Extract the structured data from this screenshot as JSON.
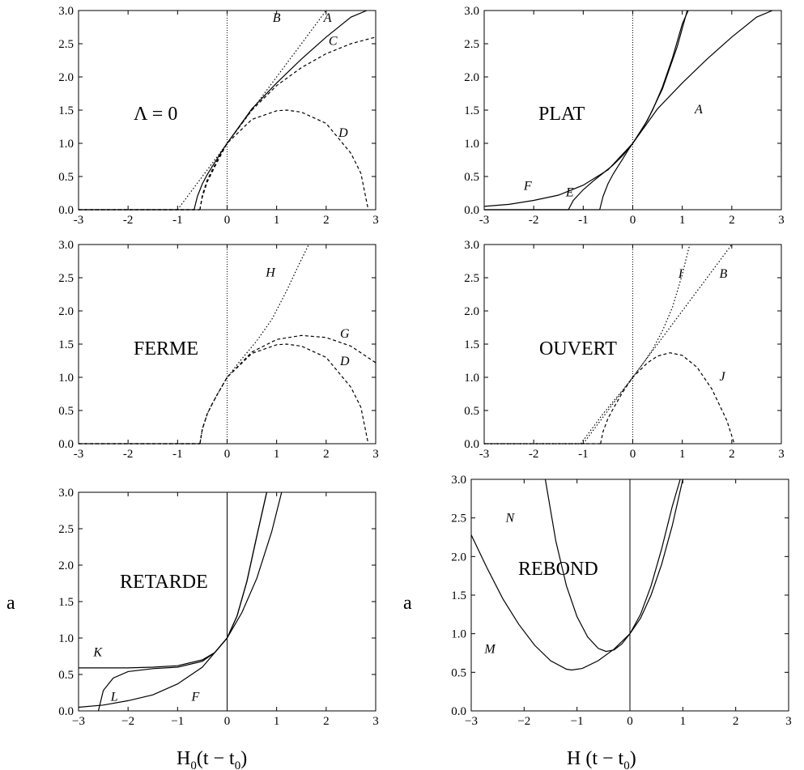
{
  "chart_data": [
    {
      "type": "line",
      "title": "Λ = 0",
      "xlim": [
        -3,
        3
      ],
      "ylim": [
        0,
        3
      ],
      "xticks": [
        "-3",
        "-2",
        "-1",
        "0",
        "1",
        "2",
        "3"
      ],
      "yticks": [
        "0.0",
        "0.5",
        "1.0",
        "1.5",
        "2.0",
        "2.5",
        "3.0"
      ],
      "zero_line_style": "dotted",
      "series": [
        {
          "name": "A",
          "style": "solid",
          "x": [
            -0.667,
            -0.6,
            -0.5,
            -0.4,
            -0.3,
            -0.2,
            -0.1,
            0,
            0.5,
            1,
            1.5,
            2,
            2.5,
            2.82
          ],
          "y": [
            0,
            0.2,
            0.39,
            0.53,
            0.65,
            0.77,
            0.89,
            1,
            1.52,
            1.91,
            2.27,
            2.6,
            2.9,
            3.0
          ]
        },
        {
          "name": "B",
          "style": "dotted",
          "x": [
            -1,
            -0.5,
            0,
            0.5,
            1,
            1.5,
            2
          ],
          "y": [
            0,
            0.5,
            1,
            1.5,
            2,
            2.5,
            3
          ]
        },
        {
          "name": "C",
          "style": "dashed",
          "x": [
            -0.55,
            -0.5,
            -0.4,
            -0.3,
            -0.2,
            -0.1,
            0,
            0.5,
            1,
            1.5,
            2,
            2.5,
            3
          ],
          "y": [
            0,
            0.19,
            0.42,
            0.57,
            0.72,
            0.86,
            1,
            1.5,
            1.87,
            2.14,
            2.35,
            2.5,
            2.6
          ]
        },
        {
          "name": "D",
          "style": "dashed",
          "x": [
            -0.55,
            -0.5,
            -0.4,
            -0.3,
            -0.2,
            -0.1,
            0,
            0.5,
            1,
            1.2,
            1.5,
            2,
            2.5,
            2.7,
            2.85
          ],
          "y": [
            0,
            0.22,
            0.45,
            0.6,
            0.74,
            0.87,
            1,
            1.36,
            1.49,
            1.5,
            1.47,
            1.3,
            0.85,
            0.55,
            0
          ]
        }
      ],
      "labels": [
        {
          "text": "B",
          "x": 0.92,
          "y": 2.83
        },
        {
          "text": "A",
          "x": 1.95,
          "y": 2.83
        },
        {
          "text": "C",
          "x": 2.05,
          "y": 2.48
        },
        {
          "text": "D",
          "x": 2.25,
          "y": 1.1
        }
      ]
    },
    {
      "type": "line",
      "title": "PLAT",
      "xlim": [
        -3,
        3
      ],
      "ylim": [
        0,
        3
      ],
      "xticks": [
        "-3",
        "-2",
        "-1",
        "0",
        "1",
        "2",
        "3"
      ],
      "yticks": [
        "0.0",
        "0.5",
        "1.0",
        "1.5",
        "2.0",
        "2.5",
        "3.0"
      ],
      "zero_line_style": "dotted",
      "series": [
        {
          "name": "A",
          "style": "solid",
          "x": [
            -0.667,
            -0.6,
            -0.5,
            -0.4,
            -0.3,
            -0.2,
            -0.1,
            0,
            0.5,
            1,
            1.5,
            2,
            2.5,
            2.82
          ],
          "y": [
            0,
            0.2,
            0.39,
            0.53,
            0.65,
            0.77,
            0.89,
            1,
            1.52,
            1.91,
            2.27,
            2.6,
            2.9,
            3.0
          ]
        },
        {
          "name": "E",
          "style": "solid",
          "x": [
            -1.3,
            -1.2,
            -1.0,
            -0.8,
            -0.6,
            -0.4,
            -0.2,
            0,
            0.2,
            0.4,
            0.6,
            0.8,
            1.0,
            1.12
          ],
          "y": [
            0,
            0.14,
            0.3,
            0.43,
            0.55,
            0.67,
            0.82,
            1,
            1.22,
            1.5,
            1.85,
            2.28,
            2.8,
            3.0
          ]
        },
        {
          "name": "F",
          "style": "solid",
          "x": [
            -3,
            -2.5,
            -2,
            -1.5,
            -1,
            -0.5,
            0,
            0.3,
            0.6,
            0.9,
            1.1
          ],
          "y": [
            0.05,
            0.08,
            0.14,
            0.22,
            0.37,
            0.6,
            1,
            1.35,
            1.82,
            2.46,
            3.0
          ]
        }
      ],
      "labels": [
        {
          "text": "A",
          "x": 1.25,
          "y": 1.45
        },
        {
          "text": "E",
          "x": -1.35,
          "y": 0.2
        },
        {
          "text": "F",
          "x": -2.2,
          "y": 0.3
        }
      ]
    },
    {
      "type": "line",
      "title": "FERME",
      "xlim": [
        -3,
        3
      ],
      "ylim": [
        0,
        3
      ],
      "xticks": [
        "-3",
        "-2",
        "-1",
        "0",
        "1",
        "2",
        "3"
      ],
      "yticks": [
        "0.0",
        "0.5",
        "1.0",
        "1.5",
        "2.0",
        "2.5",
        "3.0"
      ],
      "zero_line_style": "dotted",
      "series": [
        {
          "name": "D",
          "style": "dashed",
          "x": [
            -0.55,
            -0.5,
            -0.4,
            -0.3,
            -0.2,
            -0.1,
            0,
            0.5,
            1,
            1.2,
            1.5,
            2,
            2.5,
            2.7,
            2.85
          ],
          "y": [
            0,
            0.22,
            0.45,
            0.6,
            0.74,
            0.87,
            1,
            1.36,
            1.49,
            1.5,
            1.47,
            1.3,
            0.85,
            0.55,
            0
          ]
        },
        {
          "name": "G",
          "style": "dashed",
          "x": [
            -0.55,
            -0.5,
            -0.4,
            -0.3,
            -0.2,
            -0.1,
            0,
            0.5,
            1,
            1.5,
            2,
            2.5,
            3
          ],
          "y": [
            0,
            0.22,
            0.45,
            0.6,
            0.74,
            0.87,
            1,
            1.38,
            1.57,
            1.63,
            1.6,
            1.47,
            1.22
          ]
        },
        {
          "name": "H",
          "style": "dotted",
          "x": [
            -0.55,
            -0.5,
            -0.4,
            -0.3,
            -0.2,
            -0.1,
            0,
            0.3,
            0.6,
            0.9,
            1.2,
            1.45,
            1.65
          ],
          "y": [
            0,
            0.22,
            0.45,
            0.6,
            0.74,
            0.87,
            1,
            1.28,
            1.55,
            1.87,
            2.3,
            2.7,
            3.0
          ]
        }
      ],
      "labels": [
        {
          "text": "H",
          "x": 0.78,
          "y": 2.52
        },
        {
          "text": "G",
          "x": 2.28,
          "y": 1.6
        },
        {
          "text": "D",
          "x": 2.28,
          "y": 1.18
        }
      ]
    },
    {
      "type": "line",
      "title": "OUVERT",
      "xlim": [
        -3,
        3
      ],
      "ylim": [
        0,
        3
      ],
      "xticks": [
        "-3",
        "-2",
        "-1",
        "0",
        "1",
        "2",
        "3"
      ],
      "yticks": [
        "0.0",
        "0.5",
        "1.0",
        "1.5",
        "2.0",
        "2.5",
        "3.0"
      ],
      "zero_line_style": "dotted",
      "series": [
        {
          "name": "B",
          "style": "dotted",
          "x": [
            -1,
            -0.5,
            0,
            0.5,
            1,
            1.5,
            2
          ],
          "y": [
            0,
            0.5,
            1,
            1.5,
            2,
            2.5,
            3
          ]
        },
        {
          "name": "I",
          "style": "dotted",
          "x": [
            -1.05,
            -0.8,
            -0.6,
            -0.4,
            -0.2,
            0,
            0.2,
            0.4,
            0.6,
            0.8,
            1.0,
            1.15
          ],
          "y": [
            0,
            0.25,
            0.45,
            0.63,
            0.81,
            1,
            1.2,
            1.42,
            1.7,
            2.05,
            2.55,
            3.0
          ]
        },
        {
          "name": "J",
          "style": "dashed",
          "x": [
            -0.65,
            -0.6,
            -0.5,
            -0.4,
            -0.3,
            -0.2,
            -0.1,
            0,
            0.3,
            0.5,
            0.75,
            1,
            1.3,
            1.6,
            1.9,
            2.05
          ],
          "y": [
            0,
            0.18,
            0.38,
            0.52,
            0.65,
            0.78,
            0.89,
            1,
            1.22,
            1.32,
            1.37,
            1.33,
            1.15,
            0.82,
            0.35,
            0
          ]
        }
      ],
      "labels": [
        {
          "text": "I",
          "x": 0.92,
          "y": 2.5
        },
        {
          "text": "B",
          "x": 1.75,
          "y": 2.5
        },
        {
          "text": "J",
          "x": 1.75,
          "y": 0.95
        }
      ]
    },
    {
      "type": "line",
      "title": "RETARDE",
      "xlim": [
        -3,
        3
      ],
      "ylim": [
        0,
        3
      ],
      "xticks": [
        "−3",
        "−2",
        "−1",
        "0",
        "1",
        "2",
        "3"
      ],
      "yticks": [
        "0.0",
        "0.5",
        "1.0",
        "1.5",
        "2.0",
        "2.5",
        "3.0"
      ],
      "ylabel": "a",
      "xlabel": "H0(t − t0)",
      "zero_line_style": "solid",
      "series": [
        {
          "name": "K",
          "style": "solid",
          "x": [
            -3,
            -2.5,
            -2,
            -1.5,
            -1,
            -0.5,
            -0.25,
            0,
            0.2,
            0.4,
            0.6,
            0.8
          ],
          "y": [
            0.59,
            0.59,
            0.59,
            0.6,
            0.62,
            0.7,
            0.8,
            1,
            1.3,
            1.78,
            2.4,
            3.0
          ]
        },
        {
          "name": "L",
          "style": "solid",
          "x": [
            -2.6,
            -2.5,
            -2.3,
            -2.0,
            -1.5,
            -1.0,
            -0.5,
            -0.25,
            0,
            0.2,
            0.4,
            0.6,
            0.8
          ],
          "y": [
            0,
            0.28,
            0.45,
            0.54,
            0.58,
            0.6,
            0.68,
            0.8,
            1,
            1.3,
            1.78,
            2.4,
            3.0
          ]
        },
        {
          "name": "F",
          "style": "solid",
          "x": [
            -3,
            -2.5,
            -2,
            -1.5,
            -1,
            -0.5,
            0,
            0.3,
            0.6,
            0.9,
            1.1
          ],
          "y": [
            0.05,
            0.08,
            0.14,
            0.22,
            0.37,
            0.6,
            1,
            1.35,
            1.82,
            2.46,
            3.0
          ]
        }
      ],
      "labels": [
        {
          "text": "K",
          "x": -2.7,
          "y": 0.75
        },
        {
          "text": "L",
          "x": -2.35,
          "y": 0.14
        },
        {
          "text": "F",
          "x": -0.72,
          "y": 0.14
        }
      ]
    },
    {
      "type": "line",
      "title": "REBOND",
      "xlim": [
        -3,
        3
      ],
      "ylim": [
        0,
        3
      ],
      "xticks": [
        "−3",
        "−2",
        "−1",
        "0",
        "1",
        "2",
        "3"
      ],
      "yticks": [
        "0.0",
        "0.5",
        "1.0",
        "1.5",
        "2.0",
        "2.5",
        "3.0"
      ],
      "ylabel": "a",
      "xlabel": "H (t − t0)",
      "zero_line_style": "solid",
      "series": [
        {
          "name": "N",
          "style": "solid",
          "x": [
            -1.6,
            -1.4,
            -1.2,
            -1.0,
            -0.8,
            -0.6,
            -0.45,
            -0.3,
            -0.15,
            0,
            0.2,
            0.4,
            0.6,
            0.8,
            0.95
          ],
          "y": [
            3.0,
            2.2,
            1.62,
            1.22,
            0.96,
            0.81,
            0.77,
            0.79,
            0.87,
            1,
            1.25,
            1.62,
            2.1,
            2.65,
            3.0
          ]
        },
        {
          "name": "M",
          "style": "solid",
          "x": [
            -3,
            -2.7,
            -2.4,
            -2.1,
            -1.8,
            -1.5,
            -1.2,
            -1.1,
            -0.9,
            -0.6,
            -0.3,
            0,
            0.2,
            0.4,
            0.6,
            0.8,
            1.0
          ],
          "y": [
            2.28,
            1.85,
            1.45,
            1.12,
            0.85,
            0.65,
            0.54,
            0.53,
            0.55,
            0.65,
            0.8,
            1,
            1.2,
            1.5,
            1.9,
            2.4,
            3.0
          ]
        }
      ],
      "labels": [
        {
          "text": "N",
          "x": -2.35,
          "y": 2.45
        },
        {
          "text": "M",
          "x": -2.75,
          "y": 0.75
        }
      ]
    }
  ]
}
